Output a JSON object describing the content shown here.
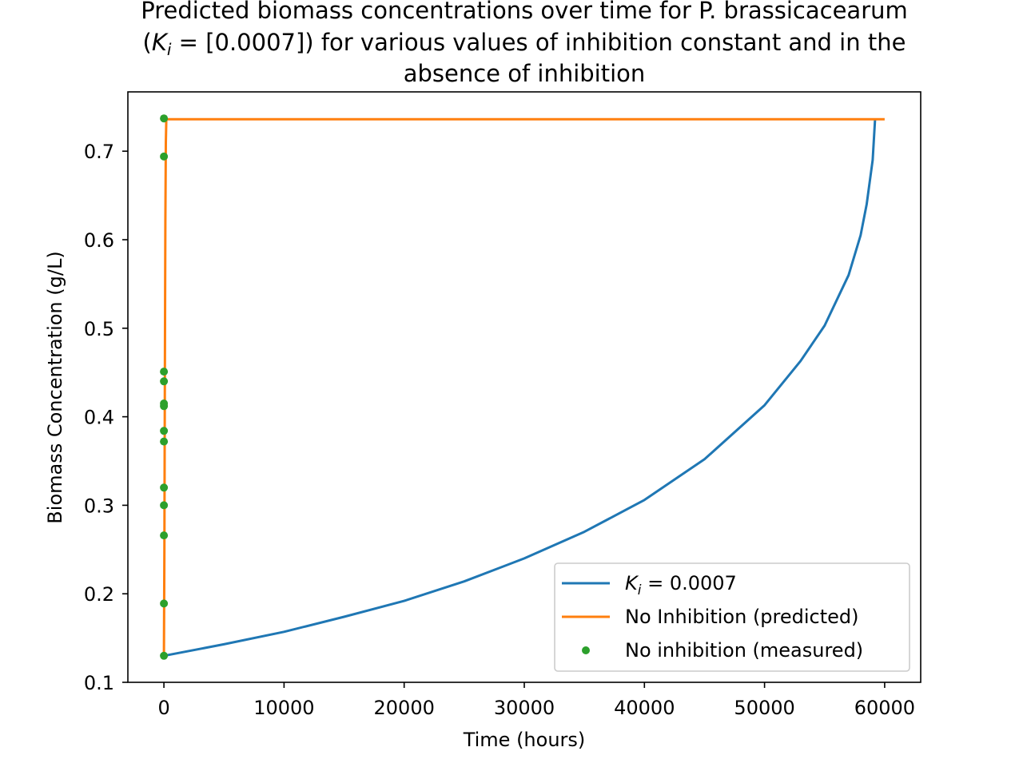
{
  "chart_data": {
    "type": "line",
    "title_lines": [
      "Predicted biomass concentrations over time for P. brassicacearum",
      "for various values of inhibition constant and in the",
      "absence of inhibition"
    ],
    "title_ki_prefix": "(",
    "title_ki_symbol": "K",
    "title_ki_sub": "i",
    "title_ki_value": " = [0.0007])",
    "xlabel": "Time (hours)",
    "ylabel": "Biomass Concentration (g/L)",
    "xlim": [
      -3000,
      63000
    ],
    "ylim": [
      0.1,
      0.767
    ],
    "xticks": [
      0,
      10000,
      20000,
      30000,
      40000,
      50000,
      60000
    ],
    "yticks": [
      0.1,
      0.2,
      0.3,
      0.4,
      0.5,
      0.6,
      0.7
    ],
    "grid": false,
    "legend_position": "lower-right",
    "series": [
      {
        "name": "K_i = 0.0007",
        "legend_symbol": "K",
        "legend_sub": "i",
        "legend_rest": " = 0.0007",
        "kind": "line",
        "color": "#1f77b4",
        "x": [
          0,
          5000,
          10000,
          15000,
          20000,
          25000,
          30000,
          35000,
          40000,
          45000,
          50000,
          53000,
          55000,
          57000,
          58000,
          58500,
          59000,
          59200
        ],
        "y": [
          0.13,
          0.143,
          0.157,
          0.174,
          0.192,
          0.214,
          0.24,
          0.27,
          0.306,
          0.352,
          0.413,
          0.463,
          0.503,
          0.56,
          0.605,
          0.64,
          0.69,
          0.736
        ]
      },
      {
        "name": "No Inhibition (predicted)",
        "kind": "line",
        "color": "#ff7f0e",
        "x": [
          0,
          40,
          80,
          120,
          160,
          200,
          1000,
          60000
        ],
        "y": [
          0.13,
          0.25,
          0.45,
          0.62,
          0.71,
          0.736,
          0.736,
          0.736
        ]
      },
      {
        "name": "No inhibition (measured)",
        "kind": "scatter",
        "color": "#2ca02c",
        "x": [
          0,
          0,
          0,
          0,
          0,
          0,
          0,
          0,
          0,
          0,
          0,
          0,
          0
        ],
        "y": [
          0.13,
          0.189,
          0.266,
          0.3,
          0.32,
          0.372,
          0.384,
          0.412,
          0.415,
          0.44,
          0.451,
          0.694,
          0.737
        ]
      }
    ]
  }
}
